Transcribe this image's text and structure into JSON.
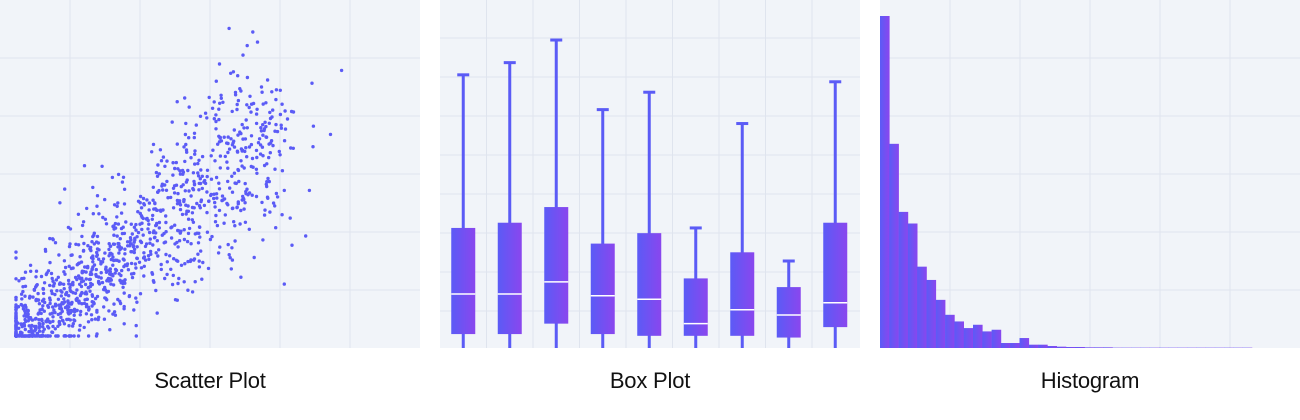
{
  "colors": {
    "accent_start": "#5b5bf6",
    "accent_end": "#8a46ee",
    "plot_bg": "#f1f4f9",
    "grid": "#dfe4ee",
    "median_line": "#ffffff"
  },
  "panels": {
    "scatter_title": "Scatter Plot",
    "box_title": "Box Plot",
    "hist_title": "Histogram"
  },
  "chart_data": [
    {
      "type": "scatter",
      "title": "Scatter Plot",
      "xlim": [
        0,
        100
      ],
      "ylim": [
        0,
        100
      ],
      "grid": true,
      "points": {
        "count": 1200,
        "distribution": "positively correlated, dense in lower-left, spreading toward upper-right",
        "sample": [
          [
            5,
            3
          ],
          [
            10,
            6
          ],
          [
            15,
            10
          ],
          [
            20,
            14
          ],
          [
            25,
            18
          ],
          [
            30,
            22
          ],
          [
            35,
            28
          ],
          [
            40,
            32
          ],
          [
            45,
            38
          ],
          [
            50,
            42
          ],
          [
            55,
            46
          ],
          [
            60,
            52
          ],
          [
            65,
            58
          ],
          [
            70,
            64
          ],
          [
            75,
            70
          ],
          [
            85,
            63
          ],
          [
            88,
            83
          ],
          [
            80,
            79
          ],
          [
            64,
            95
          ],
          [
            55,
            85
          ],
          [
            68,
            80
          ]
        ]
      }
    },
    {
      "type": "box",
      "title": "Box Plot",
      "ylim": [
        0,
        100
      ],
      "grid": true,
      "boxes": [
        {
          "min": 0,
          "q1": 4,
          "median": 15.5,
          "q3": 34.5,
          "max": 78.5
        },
        {
          "min": 0,
          "q1": 4,
          "median": 15.5,
          "q3": 36,
          "max": 82
        },
        {
          "min": 0,
          "q1": 7,
          "median": 19,
          "q3": 40.5,
          "max": 88.5
        },
        {
          "min": 0,
          "q1": 4,
          "median": 15,
          "q3": 30,
          "max": 68.5
        },
        {
          "min": 0,
          "q1": 3.5,
          "median": 14,
          "q3": 33,
          "max": 73.5
        },
        {
          "min": 0,
          "q1": 3.5,
          "median": 7,
          "q3": 20,
          "max": 34.5
        },
        {
          "min": 0,
          "q1": 3.5,
          "median": 11,
          "q3": 27.5,
          "max": 64.5
        },
        {
          "min": 0,
          "q1": 3,
          "median": 9.5,
          "q3": 17.5,
          "max": 25
        },
        {
          "min": 0,
          "q1": 6,
          "median": 13,
          "q3": 36,
          "max": 76.5
        }
      ]
    },
    {
      "type": "histogram",
      "title": "Histogram",
      "ylim": [
        0,
        100
      ],
      "grid": true,
      "counts": [
        100,
        61.5,
        41,
        37.5,
        24.5,
        20.5,
        14.5,
        10,
        8,
        6,
        7,
        5,
        5.5,
        1.5,
        1.5,
        3,
        1,
        1,
        0.6,
        0.4,
        0.3,
        0.3,
        0.2,
        0.2,
        0.2,
        0.1,
        0.1,
        0.1,
        0.1,
        0.1,
        0.1,
        0.1,
        0.1,
        0.1,
        0.1,
        0.1,
        0.1,
        0.1,
        0.1,
        0.1
      ]
    }
  ]
}
